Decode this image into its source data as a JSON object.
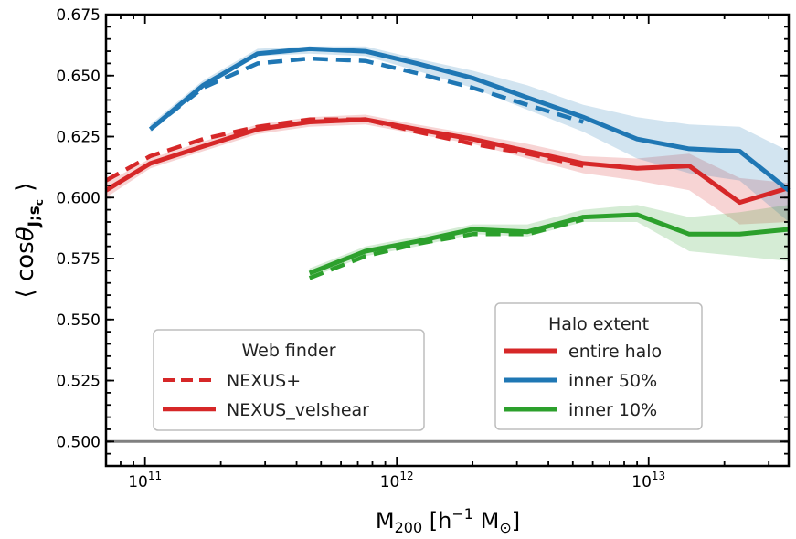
{
  "chart_data": {
    "type": "line",
    "xscale": "log",
    "xlim": [
      70000000000.0,
      36000000000000.0
    ],
    "ylim": [
      0.49,
      0.675
    ],
    "yticks": [
      {
        "value": 0.5,
        "label": "0.500"
      },
      {
        "value": 0.525,
        "label": "0.525"
      },
      {
        "value": 0.55,
        "label": "0.550"
      },
      {
        "value": 0.575,
        "label": "0.575"
      },
      {
        "value": 0.6,
        "label": "0.600"
      },
      {
        "value": 0.625,
        "label": "0.625"
      },
      {
        "value": 0.65,
        "label": "0.650"
      },
      {
        "value": 0.675,
        "label": "0.675"
      }
    ],
    "xticks": [
      {
        "value": 100000000000.0,
        "base": "10",
        "exp": "11"
      },
      {
        "value": 1000000000000.0,
        "base": "10",
        "exp": "12"
      },
      {
        "value": 10000000000000.0,
        "base": "10",
        "exp": "13"
      }
    ],
    "xlabel": {
      "main": "M",
      "sub": "200",
      "bracket_open": " [h",
      "sup": "−1",
      "unit": " M",
      "unit_sub": "⊙",
      "bracket_close": "]"
    },
    "ylabel": {
      "open": "⟨ cos",
      "theta": "θ",
      "sub": "J;s",
      "subsub": "c",
      "close": " ⟩"
    },
    "reference_line": {
      "y": 0.5,
      "color": "#808080"
    },
    "colors": {
      "red": "#d62728",
      "blue": "#1f77b4",
      "green": "#2ca02c",
      "ref": "#808080"
    },
    "series": [
      {
        "name": "entire halo",
        "finder": "NEXUS_velshear",
        "color": "#d62728",
        "style": "solid",
        "x": [
          70000000000.0,
          105000000000.0,
          170000000000.0,
          280000000000.0,
          450000000000.0,
          750000000000.0,
          1200000000000.0,
          2000000000000.0,
          3300000000000.0,
          5500000000000.0,
          9000000000000.0,
          14500000000000.0,
          23000000000000.0,
          36000000000000.0
        ],
        "y": [
          0.603,
          0.614,
          0.621,
          0.628,
          0.631,
          0.632,
          0.628,
          0.624,
          0.619,
          0.614,
          0.612,
          0.613,
          0.598,
          0.604
        ],
        "lo": [
          0.6,
          0.612,
          0.619,
          0.626,
          0.629,
          0.63,
          0.626,
          0.622,
          0.616,
          0.61,
          0.607,
          0.603,
          0.589,
          0.59
        ],
        "hi": [
          0.606,
          0.616,
          0.623,
          0.63,
          0.633,
          0.634,
          0.63,
          0.626,
          0.622,
          0.617,
          0.616,
          0.618,
          0.608,
          0.606
        ]
      },
      {
        "name": "entire halo",
        "finder": "NEXUS+",
        "color": "#d62728",
        "style": "dashed",
        "x": [
          70000000000.0,
          105000000000.0,
          170000000000.0,
          280000000000.0,
          450000000000.0,
          750000000000.0,
          1200000000000.0,
          2000000000000.0,
          3300000000000.0,
          5500000000000.0
        ],
        "y": [
          0.607,
          0.617,
          0.624,
          0.629,
          0.632,
          0.632,
          0.627,
          0.622,
          0.618,
          0.613
        ]
      },
      {
        "name": "inner 50%",
        "finder": "NEXUS_velshear",
        "color": "#1f77b4",
        "style": "solid",
        "x": [
          105000000000.0,
          170000000000.0,
          280000000000.0,
          450000000000.0,
          750000000000.0,
          1200000000000.0,
          2000000000000.0,
          3300000000000.0,
          5500000000000.0,
          9000000000000.0,
          14500000000000.0,
          23000000000000.0,
          36000000000000.0
        ],
        "y": [
          0.628,
          0.646,
          0.659,
          0.661,
          0.66,
          0.655,
          0.649,
          0.641,
          0.633,
          0.624,
          0.62,
          0.619,
          0.603
        ],
        "lo": [
          0.627,
          0.645,
          0.658,
          0.659,
          0.658,
          0.652,
          0.645,
          0.636,
          0.627,
          0.616,
          0.61,
          0.607,
          0.59
        ],
        "hi": [
          0.63,
          0.648,
          0.661,
          0.662,
          0.662,
          0.657,
          0.652,
          0.646,
          0.638,
          0.633,
          0.63,
          0.629,
          0.619
        ]
      },
      {
        "name": "inner 50%",
        "finder": "NEXUS+",
        "color": "#1f77b4",
        "style": "dashed",
        "x": [
          105000000000.0,
          170000000000.0,
          280000000000.0,
          450000000000.0,
          750000000000.0,
          1200000000000.0,
          2000000000000.0,
          3300000000000.0,
          5500000000000.0
        ],
        "y": [
          0.628,
          0.645,
          0.655,
          0.657,
          0.656,
          0.651,
          0.645,
          0.638,
          0.631
        ]
      },
      {
        "name": "inner 10%",
        "finder": "NEXUS_velshear",
        "color": "#2ca02c",
        "style": "solid",
        "x": [
          450000000000.0,
          750000000000.0,
          1200000000000.0,
          2000000000000.0,
          3300000000000.0,
          5500000000000.0,
          9000000000000.0,
          14500000000000.0,
          23000000000000.0,
          36000000000000.0
        ],
        "y": [
          0.569,
          0.578,
          0.582,
          0.587,
          0.586,
          0.592,
          0.593,
          0.585,
          0.585,
          0.587
        ],
        "lo": [
          0.567,
          0.576,
          0.58,
          0.585,
          0.584,
          0.59,
          0.59,
          0.578,
          0.576,
          0.574
        ],
        "hi": [
          0.571,
          0.58,
          0.584,
          0.589,
          0.589,
          0.595,
          0.597,
          0.592,
          0.594,
          0.597
        ]
      },
      {
        "name": "inner 10%",
        "finder": "NEXUS+",
        "color": "#2ca02c",
        "style": "dashed",
        "x": [
          450000000000.0,
          750000000000.0,
          1200000000000.0,
          2000000000000.0,
          3300000000000.0,
          5500000000000.0
        ],
        "y": [
          0.567,
          0.576,
          0.581,
          0.585,
          0.585,
          0.591
        ]
      }
    ],
    "legend_finder": {
      "placement": "lower-left",
      "title": "Web finder",
      "entries": [
        {
          "label": "NEXUS+",
          "style": "dashed",
          "color": "#d62728"
        },
        {
          "label": "NEXUS_velshear",
          "style": "solid",
          "color": "#d62728"
        }
      ]
    },
    "legend_extent": {
      "placement": "lower-right",
      "title": "Halo extent",
      "entries": [
        {
          "label": "entire halo",
          "color": "#d62728"
        },
        {
          "label": "inner 50%",
          "color": "#1f77b4"
        },
        {
          "label": "inner 10%",
          "color": "#2ca02c"
        }
      ]
    }
  }
}
